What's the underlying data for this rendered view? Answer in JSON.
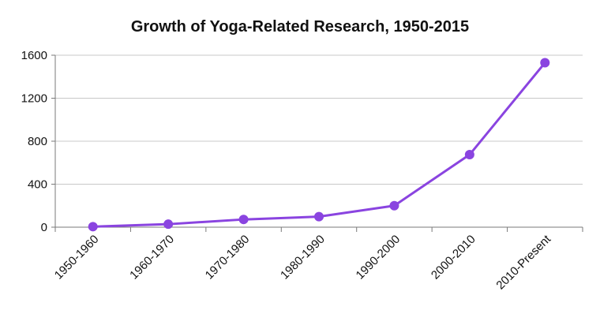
{
  "chart_data": {
    "type": "line",
    "title": "Growth of Yoga-Related Research, 1950-2015",
    "xlabel": "",
    "ylabel": "",
    "categories": [
      "1950-1960",
      "1960-1970",
      "1970-1980",
      "1980-1990",
      "1990-2000",
      "2000-2010",
      "2010-Present"
    ],
    "series": [
      {
        "values": [
          5,
          28,
          72,
          98,
          200,
          675,
          1530
        ],
        "color": "#8a44e0"
      }
    ],
    "ylim": [
      0,
      1600
    ],
    "yticks": [
      "0",
      "400",
      "800",
      "1200",
      "1600"
    ],
    "grid": true,
    "legend": "none"
  }
}
